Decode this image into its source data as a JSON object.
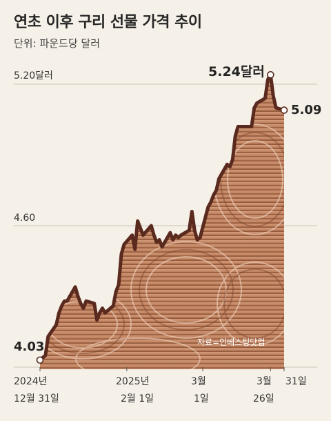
{
  "title": "연초 이후 구리 선물 가격 추이",
  "subtitle": "단위: 파운드당 달러",
  "credit": "자료=인베스팅닷컴",
  "colors": {
    "line": "#5a2a1f",
    "grid": "#c9c3b8",
    "background": "#f6f1e8",
    "copper": "#c98d6c"
  },
  "chart_data": {
    "type": "line",
    "title": "연초 이후 구리 선물 가격 추이",
    "ylabel": "단위: 파운드당 달러",
    "ylim": [
      4.0,
      5.25
    ],
    "y_ticks": [
      {
        "value": 5.2,
        "label": "5.20달러"
      },
      {
        "value": 4.6,
        "label": "4.60"
      }
    ],
    "x_range": [
      "2024-12-31",
      "2025-03-31"
    ],
    "x_ticks": [
      {
        "date": "2024-12-31",
        "line1": "2024년",
        "line2": "12월 31일"
      },
      {
        "date": "2025-02-01",
        "line1": "2025년",
        "line2": "2월 1일"
      },
      {
        "date": "2025-03-01",
        "line1": "3월",
        "line2": "1일"
      },
      {
        "date": "2025-03-26",
        "line1": "3월",
        "line2": "26일"
      },
      {
        "date": "2025-03-31",
        "line1": "31일",
        "line2": ""
      }
    ],
    "annotations": [
      {
        "date": "2024-12-31",
        "value": 4.03,
        "label": "4.03",
        "position": "above-left"
      },
      {
        "date": "2025-03-26",
        "value": 5.24,
        "label": "5.24달러",
        "position": "left"
      },
      {
        "date": "2025-03-31",
        "value": 5.09,
        "label": "5.09",
        "position": "right"
      }
    ],
    "grid": "horizontal",
    "series": [
      {
        "x": [
          "2024-12-31",
          "2025-01-02",
          "2025-01-03",
          "2025-01-06",
          "2025-01-07",
          "2025-01-08",
          "2025-01-09",
          "2025-01-10",
          "2025-01-13",
          "2025-01-14",
          "2025-01-15",
          "2025-01-16",
          "2025-01-17",
          "2025-01-20",
          "2025-01-21",
          "2025-01-22",
          "2025-01-23",
          "2025-01-24",
          "2025-01-27",
          "2025-01-28",
          "2025-01-29",
          "2025-01-30",
          "2025-01-31",
          "2025-02-03",
          "2025-02-04",
          "2025-02-05",
          "2025-02-06",
          "2025-02-07",
          "2025-02-10",
          "2025-02-11",
          "2025-02-12",
          "2025-02-13",
          "2025-02-14",
          "2025-02-17",
          "2025-02-18",
          "2025-02-19",
          "2025-02-20",
          "2025-02-21",
          "2025-02-24",
          "2025-02-25",
          "2025-02-26",
          "2025-02-27",
          "2025-02-28",
          "2025-03-03",
          "2025-03-04",
          "2025-03-05",
          "2025-03-06",
          "2025-03-07",
          "2025-03-10",
          "2025-03-11",
          "2025-03-12",
          "2025-03-13",
          "2025-03-14",
          "2025-03-17",
          "2025-03-18",
          "2025-03-19",
          "2025-03-20",
          "2025-03-21",
          "2025-03-24",
          "2025-03-25",
          "2025-03-26",
          "2025-03-27",
          "2025-03-28",
          "2025-03-31"
        ],
        "values": [
          4.03,
          4.05,
          4.13,
          4.18,
          4.23,
          4.26,
          4.28,
          4.28,
          4.34,
          4.3,
          4.27,
          4.25,
          4.28,
          4.27,
          4.2,
          4.23,
          4.25,
          4.23,
          4.26,
          4.32,
          4.35,
          4.48,
          4.52,
          4.56,
          4.5,
          4.62,
          4.59,
          4.56,
          4.6,
          4.56,
          4.53,
          4.54,
          4.51,
          4.57,
          4.54,
          4.56,
          4.55,
          4.56,
          4.58,
          4.66,
          4.58,
          4.54,
          4.55,
          4.68,
          4.7,
          4.73,
          4.75,
          4.8,
          4.86,
          4.85,
          4.88,
          4.98,
          5.02,
          5.02,
          5.02,
          5.02,
          5.1,
          5.12,
          5.14,
          5.22,
          5.24,
          5.15,
          5.1,
          5.09
        ]
      }
    ]
  }
}
